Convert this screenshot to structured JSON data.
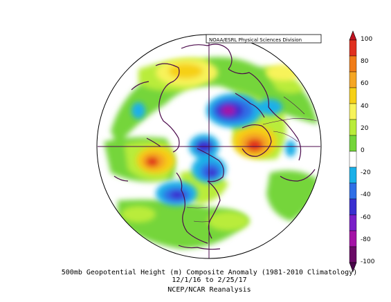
{
  "credit": "NOAA/ESRL Physical Sciences Division",
  "caption": {
    "line1": "500mb Geopotential Height (m) Composite Anomaly (1981-2010 Climatology)",
    "line2": "12/1/16  to 2/25/17",
    "line3": "NCEP/NCAR Reanalysis"
  },
  "colorbar": {
    "labels": [
      "100",
      "80",
      "60",
      "40",
      "20",
      "0",
      "-20",
      "-40",
      "-60",
      "-80",
      "-100"
    ],
    "colors": [
      "#e0301e",
      "#f07c18",
      "#f5a623",
      "#f6d016",
      "#f7f35a",
      "#b9ec3a",
      "#74d53a",
      "#ffffff",
      "#1ab0e8",
      "#2f6fe6",
      "#3a2fd0",
      "#7a1fc8",
      "#a412a6",
      "#6a0a66"
    ]
  },
  "map": {
    "projection": "polar-stereographic",
    "field": "500mb geopotential height anomaly",
    "anomalies": [
      {
        "name": "positive-anomaly-north-atlantic",
        "sign": "+",
        "value": 100
      },
      {
        "name": "positive-anomaly-north-pacific",
        "sign": "+",
        "value": 80
      },
      {
        "name": "positive-anomaly-siberia",
        "sign": "+",
        "value": 50
      },
      {
        "name": "negative-anomaly-eurasian-arctic",
        "sign": "-",
        "value": -80
      },
      {
        "name": "negative-anomaly-greenland",
        "sign": "-",
        "value": -60
      },
      {
        "name": "negative-anomaly-western-canada",
        "sign": "-",
        "value": -70
      },
      {
        "name": "negative-anomaly-eastern-pacific",
        "sign": "-",
        "value": -50
      }
    ]
  }
}
